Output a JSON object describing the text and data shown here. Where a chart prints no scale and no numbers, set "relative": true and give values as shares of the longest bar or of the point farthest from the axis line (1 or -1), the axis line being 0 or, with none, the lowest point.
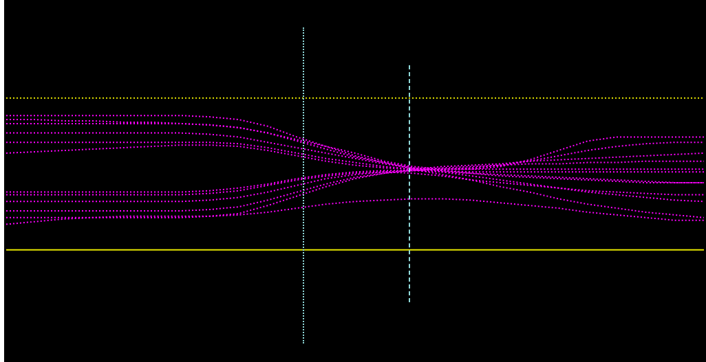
{
  "chart_data": {
    "type": "line",
    "relative": true,
    "legend": false,
    "grid": false,
    "marker": "none",
    "line_style": "dotted",
    "categories": [
      null,
      null,
      null,
      null,
      null,
      null,
      null,
      null,
      null,
      null,
      null,
      null,
      null,
      null,
      null,
      null,
      null,
      null,
      null,
      null,
      null,
      null,
      null,
      null,
      null
    ],
    "series": [
      {
        "color": "#ff00ff",
        "values": [
          1.0,
          1.0,
          1.0,
          1.0,
          1.0,
          1.0,
          1.0,
          0.99,
          0.97,
          0.92,
          0.84,
          0.77,
          0.7,
          0.65,
          0.6,
          0.56,
          0.52,
          0.47,
          0.43,
          0.38,
          0.34,
          0.31,
          0.28,
          0.26,
          0.24
        ]
      },
      {
        "color": "#ff00ff",
        "values": [
          0.94,
          0.94,
          0.94,
          0.94,
          0.94,
          0.94,
          0.94,
          0.93,
          0.91,
          0.87,
          0.81,
          0.75,
          0.69,
          0.65,
          0.61,
          0.58,
          0.55,
          0.52,
          0.49,
          0.46,
          0.43,
          0.41,
          0.39,
          0.37,
          0.36
        ]
      },
      {
        "color": "#ff00ff",
        "values": [
          0.87,
          0.87,
          0.87,
          0.87,
          0.87,
          0.87,
          0.87,
          0.86,
          0.84,
          0.8,
          0.76,
          0.72,
          0.68,
          0.64,
          0.61,
          0.59,
          0.57,
          0.55,
          0.54,
          0.53,
          0.52,
          0.51,
          0.5,
          0.5,
          0.5
        ]
      },
      {
        "color": "#ff00ff",
        "values": [
          0.8,
          0.8,
          0.8,
          0.8,
          0.8,
          0.8,
          0.8,
          0.8,
          0.79,
          0.76,
          0.72,
          0.68,
          0.65,
          0.62,
          0.6,
          0.59,
          0.58,
          0.58,
          0.58,
          0.58,
          0.58,
          0.58,
          0.58,
          0.58,
          0.58
        ]
      },
      {
        "color": "#ff00ff",
        "values": [
          0.72,
          0.73,
          0.74,
          0.75,
          0.76,
          0.77,
          0.78,
          0.78,
          0.77,
          0.74,
          0.7,
          0.66,
          0.63,
          0.61,
          0.6,
          0.6,
          0.61,
          0.63,
          0.66,
          0.7,
          0.74,
          0.77,
          0.79,
          0.8,
          0.8
        ]
      },
      {
        "color": "#ff00ff",
        "values": [
          0.97,
          0.97,
          0.96,
          0.96,
          0.95,
          0.95,
          0.94,
          0.93,
          0.91,
          0.87,
          0.82,
          0.77,
          0.72,
          0.66,
          0.62,
          0.6,
          0.6,
          0.62,
          0.67,
          0.74,
          0.81,
          0.84,
          0.84,
          0.84,
          0.84
        ]
      },
      {
        "color": "#ff00ff",
        "values": [
          0.19,
          0.21,
          0.23,
          0.24,
          0.25,
          0.25,
          0.25,
          0.25,
          0.26,
          0.28,
          0.31,
          0.34,
          0.36,
          0.37,
          0.38,
          0.38,
          0.37,
          0.35,
          0.33,
          0.31,
          0.28,
          0.26,
          0.24,
          0.22,
          0.22
        ]
      },
      {
        "color": "#ff00ff",
        "values": [
          0.24,
          0.24,
          0.24,
          0.24,
          0.24,
          0.24,
          0.24,
          0.25,
          0.27,
          0.33,
          0.4,
          0.47,
          0.53,
          0.57,
          0.6,
          0.62,
          0.63,
          0.64,
          0.66,
          0.67,
          0.68,
          0.69,
          0.7,
          0.71,
          0.72
        ]
      },
      {
        "color": "#ff00ff",
        "values": [
          0.29,
          0.29,
          0.29,
          0.29,
          0.29,
          0.29,
          0.29,
          0.3,
          0.32,
          0.37,
          0.43,
          0.49,
          0.54,
          0.57,
          0.59,
          0.61,
          0.62,
          0.63,
          0.64,
          0.64,
          0.65,
          0.65,
          0.66,
          0.66,
          0.66
        ]
      },
      {
        "color": "#ff00ff",
        "values": [
          0.36,
          0.36,
          0.36,
          0.36,
          0.36,
          0.36,
          0.36,
          0.37,
          0.39,
          0.43,
          0.48,
          0.53,
          0.56,
          0.58,
          0.59,
          0.6,
          0.6,
          0.6,
          0.6,
          0.6,
          0.6,
          0.6,
          0.6,
          0.6,
          0.6
        ]
      },
      {
        "color": "#ff00ff",
        "values": [
          0.43,
          0.43,
          0.43,
          0.43,
          0.43,
          0.43,
          0.43,
          0.44,
          0.46,
          0.49,
          0.53,
          0.56,
          0.58,
          0.59,
          0.59,
          0.58,
          0.57,
          0.56,
          0.55,
          0.54,
          0.53,
          0.52,
          0.51,
          0.5,
          0.5
        ]
      },
      {
        "color": "#ff00ff",
        "values": [
          0.41,
          0.41,
          0.41,
          0.41,
          0.41,
          0.41,
          0.41,
          0.42,
          0.44,
          0.48,
          0.52,
          0.55,
          0.57,
          0.58,
          0.57,
          0.55,
          0.52,
          0.5,
          0.48,
          0.46,
          0.44,
          0.43,
          0.42,
          0.41,
          0.41
        ]
      }
    ],
    "ref_lines": [
      {
        "axis": "y",
        "value": 0,
        "color": "#e6e600",
        "line_style": "solid"
      },
      {
        "axis": "y",
        "value": 1.13,
        "color": "#e6e600",
        "line_style": "dotted"
      }
    ]
  }
}
